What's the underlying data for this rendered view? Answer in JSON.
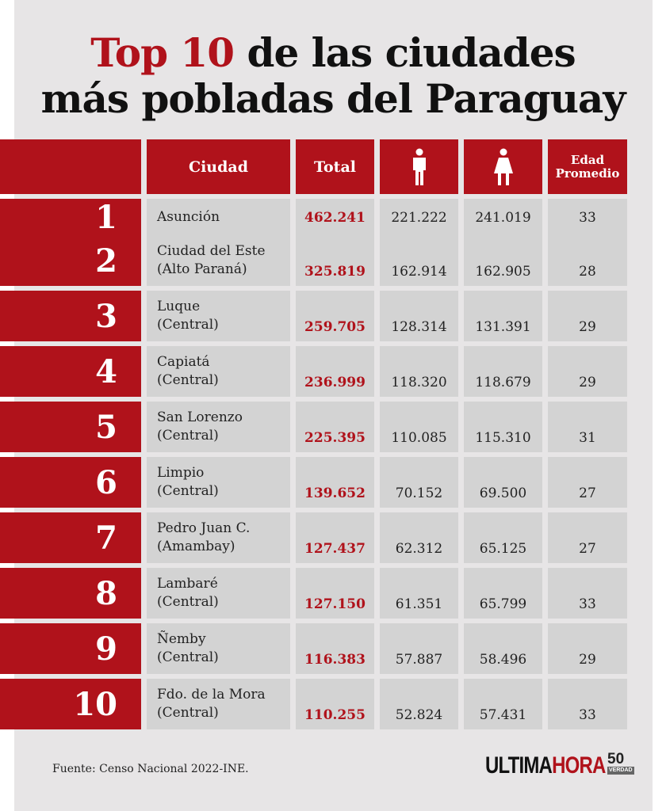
{
  "title": {
    "highlight": "Top 10",
    "line1_rest": " de las ciudades",
    "line2": "más pobladas del Paraguay"
  },
  "headers": {
    "city": "Ciudad",
    "total": "Total",
    "male_icon": "man-icon",
    "female_icon": "woman-icon",
    "age": "Edad Promedio"
  },
  "rows": [
    {
      "rank": "1",
      "city1": "Asunción",
      "city2": "",
      "total": "462.241",
      "male": "221.222",
      "female": "241.019",
      "age": "33"
    },
    {
      "rank": "2",
      "city1": "Ciudad del Este",
      "city2": "(Alto Paraná)",
      "total": "325.819",
      "male": "162.914",
      "female": "162.905",
      "age": "28"
    },
    {
      "rank": "3",
      "city1": "Luque",
      "city2": "(Central)",
      "total": "259.705",
      "male": "128.314",
      "female": "131.391",
      "age": "29"
    },
    {
      "rank": "4",
      "city1": "Capiatá",
      "city2": "(Central)",
      "total": "236.999",
      "male": "118.320",
      "female": "118.679",
      "age": "29"
    },
    {
      "rank": "5",
      "city1": "San Lorenzo",
      "city2": "(Central)",
      "total": "225.395",
      "male": "110.085",
      "female": "115.310",
      "age": "31"
    },
    {
      "rank": "6",
      "city1": "Limpio",
      "city2": "(Central)",
      "total": "139.652",
      "male": "70.152",
      "female": "69.500",
      "age": "27"
    },
    {
      "rank": "7",
      "city1": "Pedro Juan C.",
      "city2": "(Amambay)",
      "total": "127.437",
      "male": "62.312",
      "female": "65.125",
      "age": "27"
    },
    {
      "rank": "8",
      "city1": "Lambaré",
      "city2": "(Central)",
      "total": "127.150",
      "male": "61.351",
      "female": "65.799",
      "age": "33"
    },
    {
      "rank": "9",
      "city1": "Ñemby",
      "city2": "(Central)",
      "total": "116.383",
      "male": "57.887",
      "female": "58.496",
      "age": "29"
    },
    {
      "rank": "10",
      "city1": "Fdo. de la Mora",
      "city2": "(Central)",
      "total": "110.255",
      "male": "52.824",
      "female": "57.431",
      "age": "33"
    }
  ],
  "footer": "Fuente: Censo Nacional 2022-INE.",
  "logo": {
    "part1": "ULTIMA",
    "part2": "HORA",
    "badge_num": "50",
    "badge_text": "VERDAD"
  },
  "colors": {
    "accent": "#b0121b",
    "cell": "#d3d3d3",
    "background": "#e7e5e6"
  }
}
